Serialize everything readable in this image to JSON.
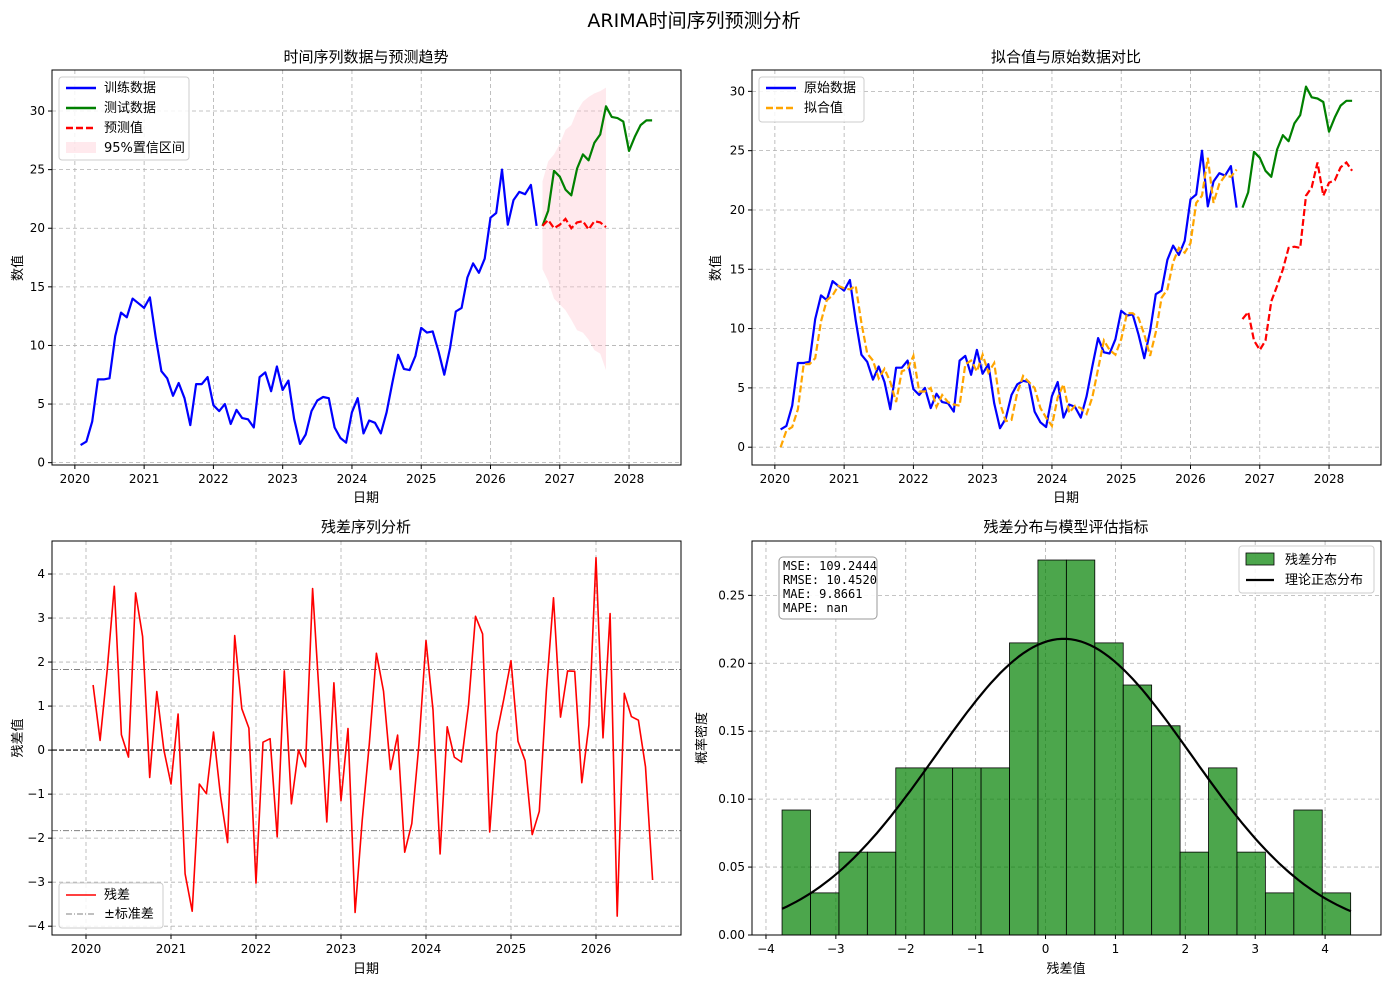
{
  "suptitle": "ARIMA时间序列预测分析",
  "colors": {
    "train": "#0000ff",
    "test": "#008000",
    "forecast": "#ff0000",
    "ci": "#ffc0cb",
    "fitted": "#ffa500",
    "residual": "#ff0000",
    "std": "#808080",
    "hist": "#008000",
    "normal": "#000000"
  },
  "chart_data": [
    {
      "type": "line",
      "title": "时间序列数据与预测趋势",
      "xlabel": "日期",
      "ylabel": "数值",
      "xlim": [
        2019.67,
        2028.75
      ],
      "ylim": [
        -0.2,
        33.5
      ],
      "xticks": [
        2020,
        2021,
        2022,
        2023,
        2024,
        2025,
        2026,
        2027,
        2028
      ],
      "yticks": [
        0,
        5,
        10,
        15,
        20,
        25,
        30
      ],
      "grid": true,
      "legend_position": "top-left",
      "legend": [
        "训练数据",
        "测试数据",
        "预测值",
        "95%置信区间"
      ],
      "series": [
        {
          "name": "训练数据",
          "x_start": 2020.083,
          "x_step": 0.08333,
          "values": [
            1.5,
            1.8,
            3.5,
            7.1,
            7.1,
            7.2,
            10.8,
            12.8,
            12.4,
            14.0,
            13.6,
            13.2,
            14.1,
            10.7,
            7.8,
            7.2,
            5.7,
            6.8,
            5.5,
            3.2,
            6.7,
            6.7,
            7.3,
            4.9,
            4.4,
            5.0,
            3.3,
            4.5,
            3.8,
            3.7,
            3.0,
            7.3,
            7.7,
            6.1,
            8.2,
            6.2,
            7.0,
            3.7,
            1.6,
            2.4,
            4.4,
            5.3,
            5.6,
            5.5,
            3.0,
            2.1,
            1.7,
            4.3,
            5.5,
            2.5,
            3.6,
            3.4,
            2.5,
            4.3,
            6.8,
            9.2,
            8.0,
            7.9,
            9.1,
            11.5,
            11.1,
            11.2,
            9.5,
            7.5,
            9.8,
            12.9,
            13.2,
            15.8,
            17.0,
            16.2,
            17.4,
            20.9,
            21.3,
            25.0,
            20.3,
            22.4,
            23.1,
            22.9,
            23.7,
            20.2
          ]
        },
        {
          "name": "测试数据",
          "x_start": 2026.75,
          "x_step": 0.08333,
          "values": [
            20.2,
            21.5,
            24.9,
            24.4,
            23.3,
            22.8,
            25.1,
            26.3,
            25.8,
            27.3,
            28.0,
            30.4,
            29.5,
            29.4,
            29.1,
            26.6,
            27.8,
            28.8,
            29.2,
            29.2
          ]
        },
        {
          "name": "预测值",
          "x_start": 2026.75,
          "x_step": 0.08333,
          "values": [
            20.2,
            20.7,
            20.0,
            20.3,
            20.8,
            20.0,
            20.5,
            20.6,
            19.9,
            20.6,
            20.5,
            20.1
          ]
        },
        {
          "name": "95%置信区间",
          "x_start": 2026.75,
          "x_step": 0.08333,
          "lower": [
            16.5,
            15.5,
            14.0,
            13.5,
            13.0,
            12.2,
            11.3,
            11.1,
            10.5,
            9.6,
            9.3,
            7.9
          ],
          "upper": [
            24.0,
            25.7,
            26.3,
            27.2,
            28.4,
            28.8,
            30.0,
            30.8,
            31.2,
            31.5,
            31.7,
            32.0
          ]
        }
      ]
    },
    {
      "type": "line",
      "title": "拟合值与原始数据对比",
      "xlabel": "日期",
      "ylabel": "数值",
      "xlim": [
        2019.67,
        2028.75
      ],
      "ylim": [
        -1.5,
        31.8
      ],
      "xticks": [
        2020,
        2021,
        2022,
        2023,
        2024,
        2025,
        2026,
        2027,
        2028
      ],
      "yticks": [
        0,
        5,
        10,
        15,
        20,
        25,
        30
      ],
      "grid": true,
      "legend_position": "top-left",
      "legend": [
        "原始数据",
        "拟合值"
      ],
      "series": [
        {
          "name": "原始数据",
          "part": "train",
          "x_start": 2020.083,
          "x_step": 0.08333,
          "values": [
            1.5,
            1.8,
            3.5,
            7.1,
            7.1,
            7.2,
            10.8,
            12.8,
            12.4,
            14.0,
            13.6,
            13.2,
            14.1,
            10.7,
            7.8,
            7.2,
            5.7,
            6.8,
            5.5,
            3.2,
            6.7,
            6.7,
            7.3,
            4.9,
            4.4,
            5.0,
            3.3,
            4.5,
            3.8,
            3.7,
            3.0,
            7.3,
            7.7,
            6.1,
            8.2,
            6.2,
            7.0,
            3.7,
            1.6,
            2.4,
            4.4,
            5.3,
            5.6,
            5.5,
            3.0,
            2.1,
            1.7,
            4.3,
            5.5,
            2.5,
            3.6,
            3.4,
            2.5,
            4.3,
            6.8,
            9.2,
            8.0,
            7.9,
            9.1,
            11.5,
            11.1,
            11.2,
            9.5,
            7.5,
            9.8,
            12.9,
            13.2,
            15.8,
            17.0,
            16.2,
            17.4,
            20.9,
            21.3,
            25.0,
            20.3,
            22.4,
            23.1,
            22.9,
            23.7,
            20.2
          ]
        },
        {
          "name": "原始数据",
          "part": "test",
          "x_start": 2026.75,
          "x_step": 0.08333,
          "values": [
            20.2,
            21.5,
            24.9,
            24.4,
            23.3,
            22.8,
            25.1,
            26.3,
            25.8,
            27.3,
            28.0,
            30.4,
            29.5,
            29.4,
            29.1,
            26.6,
            27.8,
            28.8,
            29.2,
            29.2
          ]
        },
        {
          "name": "拟合值",
          "part": "train",
          "x_start": 2020.083,
          "x_step": 0.08333,
          "values": [
            0.0,
            1.4,
            1.7,
            3.2,
            7.0,
            7.0,
            7.5,
            10.6,
            12.4,
            12.8,
            13.6,
            13.4,
            13.3,
            13.6,
            10.5,
            7.9,
            7.3,
            5.8,
            6.6,
            5.5,
            3.8,
            6.4,
            6.6,
            7.7,
            4.7,
            4.7,
            5.0,
            3.4,
            4.4,
            3.8,
            3.6,
            3.5,
            7.0,
            7.3,
            6.4,
            7.8,
            6.3,
            7.1,
            3.7,
            2.2,
            2.3,
            4.6,
            6.0,
            5.5,
            5.0,
            3.3,
            2.5,
            1.8,
            4.2,
            5.3,
            2.9,
            3.5,
            3.3,
            2.8,
            4.2,
            6.6,
            9.0,
            8.2,
            7.8,
            9.1,
            11.3,
            11.3,
            10.9,
            9.5,
            7.7,
            9.7,
            12.6,
            13.3,
            15.6,
            16.8,
            16.4,
            17.2,
            20.6,
            21.2,
            24.4,
            20.6,
            22.2,
            22.9,
            22.8,
            23.4
          ]
        },
        {
          "name": "拟合值",
          "part": "test",
          "x_start": 2026.75,
          "x_step": 0.08333,
          "values": [
            10.8,
            11.4,
            9.0,
            8.2,
            9.0,
            12.3,
            13.6,
            15.0,
            16.8,
            16.9,
            16.8,
            21.2,
            21.9,
            24.0,
            21.2,
            22.3,
            22.5,
            23.6,
            24.0,
            23.3
          ]
        }
      ]
    },
    {
      "type": "line",
      "title": "残差序列分析",
      "xlabel": "日期",
      "ylabel": "残差值",
      "xlim": [
        2019.6,
        2027.0
      ],
      "ylim": [
        -4.2,
        4.75
      ],
      "xticks": [
        2020,
        2021,
        2022,
        2023,
        2024,
        2025,
        2026
      ],
      "yticks": [
        -4,
        -3,
        -2,
        -1,
        0,
        1,
        2,
        3,
        4
      ],
      "grid": true,
      "legend_position": "bottom-left",
      "legend": [
        "残差",
        "±标准差"
      ],
      "std_band": 1.83,
      "series": [
        {
          "name": "残差",
          "x_start": 2020.083,
          "x_step": 0.08333,
          "values": [
            1.48,
            0.22,
            1.82,
            3.72,
            0.35,
            -0.16,
            3.57,
            2.58,
            -0.62,
            1.33,
            0.0,
            -0.77,
            0.82,
            -2.81,
            -3.66,
            -0.77,
            -0.99,
            0.41,
            -1.04,
            -2.1,
            2.6,
            0.94,
            0.5,
            -3.02,
            0.18,
            0.26,
            -1.97,
            1.8,
            -1.22,
            0.0,
            -0.38,
            3.67,
            1.06,
            -1.63,
            1.53,
            -1.15,
            0.49,
            -3.69,
            -1.6,
            0.14,
            2.2,
            1.34,
            -0.44,
            0.34,
            -2.32,
            -1.67,
            0.12,
            2.49,
            0.91,
            -2.36,
            0.53,
            -0.16,
            -0.27,
            1.02,
            3.04,
            2.64,
            -1.86,
            0.37,
            1.17,
            2.03,
            0.2,
            -0.24,
            -1.92,
            -1.39,
            1.36,
            3.46,
            0.75,
            1.8,
            1.79,
            -0.74,
            0.57,
            4.37,
            0.28,
            3.1,
            -3.77,
            1.29,
            0.76,
            0.68,
            -0.38,
            -2.95
          ]
        }
      ]
    },
    {
      "type": "bar",
      "title": "残差分布与模型评估指标",
      "xlabel": "残差值",
      "ylabel": "概率密度",
      "xlim": [
        -4.2,
        4.8
      ],
      "ylim": [
        0,
        0.29
      ],
      "xticks": [
        -4,
        -3,
        -2,
        -1,
        0,
        1,
        2,
        3,
        4
      ],
      "yticks": [
        0.0,
        0.05,
        0.1,
        0.15,
        0.2,
        0.25
      ],
      "grid": true,
      "legend_position": "top-right",
      "legend": [
        "残差分布",
        "理论正态分布"
      ],
      "bins": {
        "start": -3.77,
        "width": 0.4068
      },
      "density": [
        0.092,
        0.031,
        0.061,
        0.061,
        0.123,
        0.123,
        0.123,
        0.123,
        0.215,
        0.276,
        0.276,
        0.215,
        0.184,
        0.154,
        0.061,
        0.123,
        0.061,
        0.031,
        0.092,
        0.031
      ],
      "normal": {
        "mean": 0.26,
        "std": 1.83,
        "x_range": [
          -3.77,
          4.37
        ]
      },
      "metrics": [
        "MSE: 109.2444",
        "RMSE: 10.4520",
        "MAE: 9.8661",
        "MAPE: nan"
      ]
    }
  ]
}
